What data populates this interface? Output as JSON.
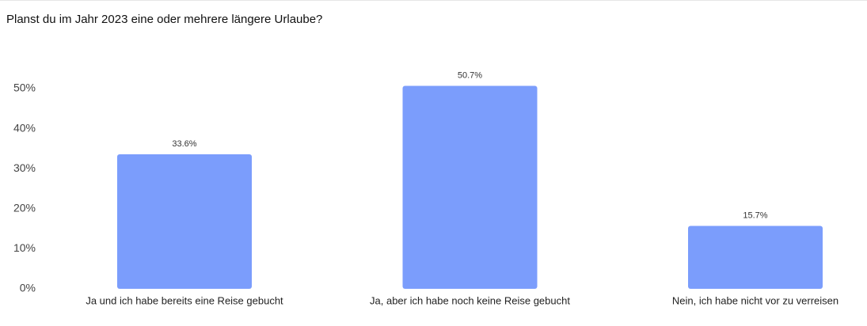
{
  "chart_data": {
    "type": "bar",
    "title": "Planst du im Jahr 2023 eine oder mehrere längere Urlaube?",
    "categories": [
      "Ja und ich habe bereits eine Reise gebucht",
      "Ja, aber ich habe noch keine Reise gebucht",
      "Nein, ich habe nicht vor zu verreisen"
    ],
    "values": [
      33.6,
      50.7,
      15.7
    ],
    "value_labels": [
      "33.6%",
      "50.7%",
      "15.7%"
    ],
    "color": "#7b9dfc",
    "ylim": [
      0,
      50
    ],
    "yticks": [
      {
        "value": 0,
        "label": "0%"
      },
      {
        "value": 10,
        "label": "10%"
      },
      {
        "value": 20,
        "label": "20%"
      },
      {
        "value": 30,
        "label": "30%"
      },
      {
        "value": 40,
        "label": "40%"
      },
      {
        "value": 50,
        "label": "50%"
      }
    ],
    "grid": false
  }
}
